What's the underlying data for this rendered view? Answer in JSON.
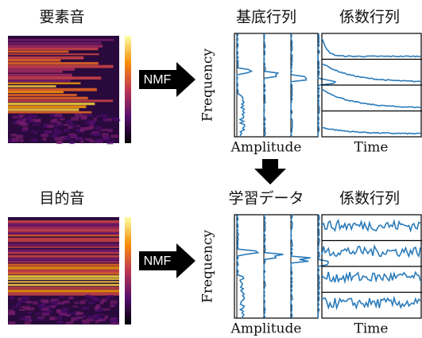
{
  "top": {
    "source_label": "要素音",
    "nmf": "NMF",
    "basis_title": "基底行列",
    "coef_title": "係数行列",
    "y_label": "Frequency",
    "basis_x_label": "Amplitude",
    "coef_x_label": "Time"
  },
  "bottom": {
    "source_label": "目的音",
    "nmf": "NMF",
    "basis_title": "学習データ",
    "coef_title": "係数行列",
    "y_label": "Frequency",
    "basis_x_label": "Amplitude",
    "coef_x_label": "Time"
  }
}
